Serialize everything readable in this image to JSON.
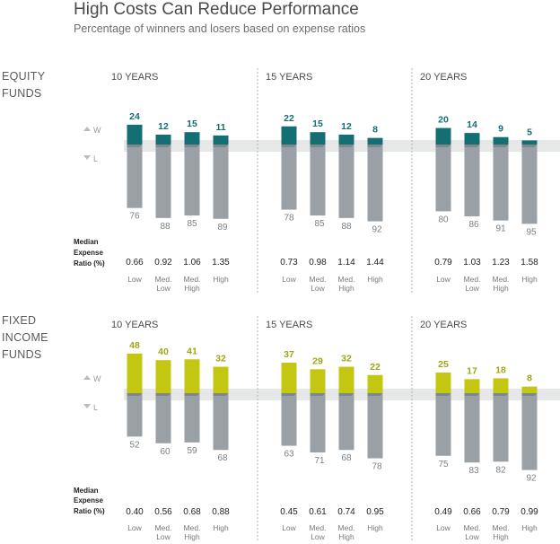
{
  "title": "High Costs Can Reduce Performance",
  "subtitle": "Percentage of winners and losers based on expense ratios",
  "legend": {
    "winners": "W",
    "losers": "L"
  },
  "colors": {
    "equity_winner": "#136f73",
    "fixed_winner": "#c3c711",
    "loser": "#9aa1a6",
    "band": "#e6e8e8",
    "winner_label_equity": "#136f73",
    "winner_label_fixed": "#9ea513",
    "loser_label": "#7a7f83",
    "section_label": "#5a5a5a",
    "divider": "#b0b0b0"
  },
  "chart_data": [
    {
      "type": "bar",
      "section_label": "EQUITY FUNDS",
      "section_label_lines": [
        "EQUITY",
        "FUNDS"
      ],
      "expense_heading": [
        "Median",
        "Expense",
        "Ratio (%)"
      ],
      "categories": [
        [
          "Low"
        ],
        [
          "Med.",
          "Low"
        ],
        [
          "Med.",
          "High"
        ],
        [
          "High"
        ]
      ],
      "panels": [
        {
          "period": "10 YEARS",
          "winners": [
            24,
            12,
            15,
            11
          ],
          "losers": [
            76,
            88,
            85,
            89
          ],
          "expense_ratio": [
            "0.66",
            "0.92",
            "1.06",
            "1.35"
          ]
        },
        {
          "period": "15 YEARS",
          "winners": [
            22,
            15,
            12,
            8
          ],
          "losers": [
            78,
            85,
            88,
            92
          ],
          "expense_ratio": [
            "0.73",
            "0.98",
            "1.14",
            "1.44"
          ]
        },
        {
          "period": "20 YEARS",
          "winners": [
            20,
            14,
            9,
            5
          ],
          "losers": [
            80,
            86,
            91,
            95
          ],
          "expense_ratio": [
            "0.79",
            "1.03",
            "1.23",
            "1.58"
          ]
        }
      ]
    },
    {
      "type": "bar",
      "section_label": "FIXED INCOME FUNDS",
      "section_label_lines": [
        "FIXED",
        "INCOME",
        "FUNDS"
      ],
      "expense_heading": [
        "Median",
        "Expense",
        "Ratio (%)"
      ],
      "categories": [
        [
          "Low"
        ],
        [
          "Med.",
          "Low"
        ],
        [
          "Med.",
          "High"
        ],
        [
          "High"
        ]
      ],
      "panels": [
        {
          "period": "10 YEARS",
          "winners": [
            48,
            40,
            41,
            32
          ],
          "losers": [
            52,
            60,
            59,
            68
          ],
          "expense_ratio": [
            "0.40",
            "0.56",
            "0.68",
            "0.88"
          ]
        },
        {
          "period": "15 YEARS",
          "winners": [
            37,
            29,
            32,
            22
          ],
          "losers": [
            63,
            71,
            68,
            78
          ],
          "expense_ratio": [
            "0.45",
            "0.61",
            "0.74",
            "0.95"
          ]
        },
        {
          "period": "20 YEARS",
          "winners": [
            25,
            17,
            18,
            8
          ],
          "losers": [
            75,
            83,
            82,
            92
          ],
          "expense_ratio": [
            "0.49",
            "0.66",
            "0.79",
            "0.99"
          ]
        }
      ]
    }
  ]
}
